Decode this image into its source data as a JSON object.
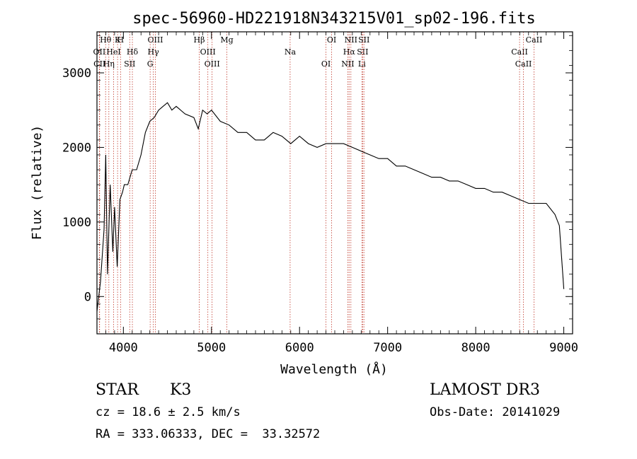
{
  "chart_data": {
    "type": "line",
    "title": "spec-56960-HD221918N343215V01_sp02-196.fits",
    "xlabel": "Wavelength (Å)",
    "ylabel": "Flux (relative)",
    "xlim": [
      3700,
      9100
    ],
    "ylim": [
      -500,
      3550
    ],
    "xticks": [
      4000,
      5000,
      6000,
      7000,
      8000,
      9000
    ],
    "yticks": [
      0,
      1000,
      2000,
      3000
    ],
    "grid": false,
    "series": [
      {
        "name": "spectrum",
        "x": [
          3700,
          3740,
          3780,
          3800,
          3820,
          3850,
          3880,
          3900,
          3930,
          3960,
          3990,
          4010,
          4050,
          4100,
          4150,
          4200,
          4250,
          4300,
          4350,
          4400,
          4450,
          4500,
          4550,
          4600,
          4700,
          4800,
          4850,
          4900,
          4950,
          5000,
          5100,
          5200,
          5300,
          5400,
          5500,
          5600,
          5700,
          5800,
          5900,
          6000,
          6100,
          6200,
          6300,
          6400,
          6500,
          6600,
          6700,
          6800,
          6900,
          7000,
          7100,
          7200,
          7300,
          7400,
          7500,
          7600,
          7700,
          7800,
          7900,
          8000,
          8100,
          8200,
          8300,
          8400,
          8500,
          8600,
          8700,
          8800,
          8900,
          8950,
          9000
        ],
        "y": [
          -200,
          200,
          900,
          1900,
          300,
          1500,
          600,
          1200,
          400,
          1300,
          1400,
          1500,
          1500,
          1700,
          1700,
          1900,
          2200,
          2350,
          2400,
          2500,
          2550,
          2600,
          2500,
          2550,
          2450,
          2400,
          2250,
          2500,
          2450,
          2500,
          2350,
          2300,
          2200,
          2200,
          2100,
          2100,
          2200,
          2150,
          2050,
          2150,
          2050,
          2000,
          2050,
          2050,
          2050,
          2000,
          1950,
          1900,
          1850,
          1850,
          1750,
          1750,
          1700,
          1650,
          1600,
          1600,
          1550,
          1550,
          1500,
          1450,
          1450,
          1400,
          1400,
          1350,
          1300,
          1250,
          1250,
          1250,
          1100,
          950,
          100
        ]
      }
    ],
    "spectral_lines": [
      {
        "label": "Hθ",
        "x": 3798
      },
      {
        "label": "OII",
        "x": 3727
      },
      {
        "label": "CII",
        "x": 3730
      },
      {
        "label": "K",
        "x": 3934
      },
      {
        "label": "HeI",
        "x": 3889
      },
      {
        "label": "Hη",
        "x": 3835
      },
      {
        "label": "H",
        "x": 3968
      },
      {
        "label": "Hδ",
        "x": 4102
      },
      {
        "label": "SII",
        "x": 4072
      },
      {
        "label": "OIII",
        "x": 4363
      },
      {
        "label": "Hγ",
        "x": 4340
      },
      {
        "label": "G",
        "x": 4304
      },
      {
        "label": "Hβ",
        "x": 4861
      },
      {
        "label": "OIII",
        "x": 4959
      },
      {
        "label": "OIII",
        "x": 5007
      },
      {
        "label": "Mg",
        "x": 5175
      },
      {
        "label": "Na",
        "x": 5893
      },
      {
        "label": "OI",
        "x": 6300
      },
      {
        "label": "OI",
        "x": 6364
      },
      {
        "label": "Hα",
        "x": 6563
      },
      {
        "label": "NII",
        "x": 6548
      },
      {
        "label": "NII",
        "x": 6583
      },
      {
        "label": "SII",
        "x": 6716
      },
      {
        "label": "Li",
        "x": 6708
      },
      {
        "label": "SII",
        "x": 6731
      },
      {
        "label": "CaII",
        "x": 8498
      },
      {
        "label": "CaII",
        "x": 8542
      },
      {
        "label": "CaII",
        "x": 8662
      }
    ]
  },
  "info": {
    "object_class": "STAR",
    "subclass": "K3",
    "survey": "LAMOST DR3",
    "cz": "cz = 18.6 ± 2.5 km/s",
    "obs_date": "Obs-Date: 20141029",
    "coords": "RA = 333.06333, DEC =  33.32572"
  }
}
